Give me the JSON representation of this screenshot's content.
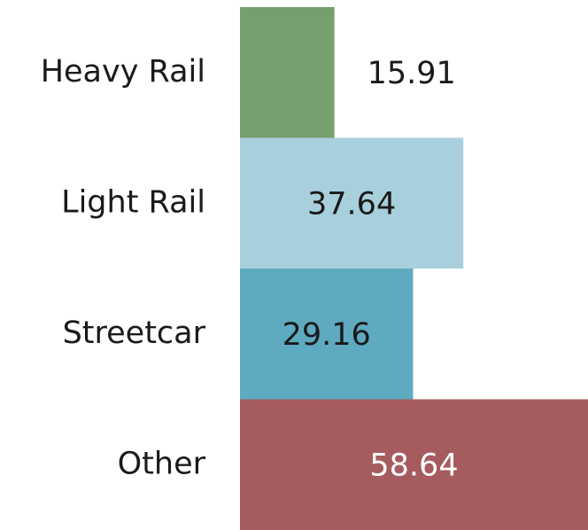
{
  "chart_data": {
    "type": "barh",
    "categories": [
      "Heavy Rail",
      "Light Rail",
      "Streetcar",
      "Other"
    ],
    "values": [
      15.91,
      37.64,
      29.16,
      58.64
    ],
    "colors": [
      "#769f6e",
      "#a8d0dc",
      "#5eaac0",
      "#a65c5e"
    ]
  }
}
